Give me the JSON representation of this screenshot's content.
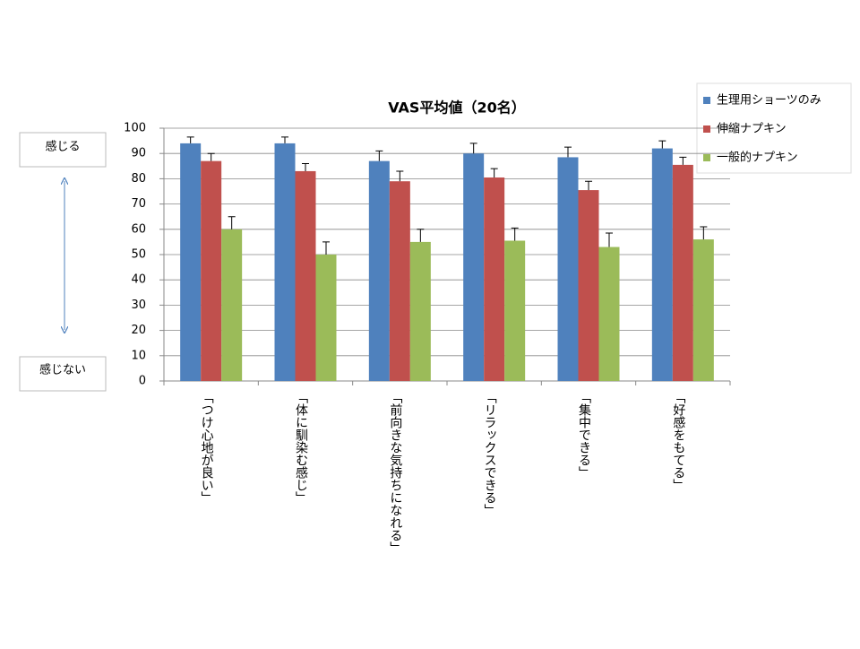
{
  "chart_data": {
    "type": "bar",
    "title": "VAS平均値（20名）",
    "categories": [
      "「つけ心地が良い」",
      "「体に馴染む感じ」",
      "「前向きな気持ちになれる」",
      "「リラックスできる」",
      "「集中できる」",
      "「好感をもてる」"
    ],
    "series": [
      {
        "name": "生理用ショーツのみ",
        "color": "#4f81bd",
        "values": [
          94,
          94,
          87,
          90,
          88.5,
          92
        ],
        "errors": [
          2.5,
          2.5,
          4,
          4,
          4,
          3
        ]
      },
      {
        "name": "伸縮ナプキン",
        "color": "#c0504d",
        "values": [
          87,
          83,
          79,
          80.5,
          75.5,
          85.5
        ],
        "errors": [
          3,
          3,
          4,
          3.5,
          3.5,
          3
        ]
      },
      {
        "name": "一般的ナプキン",
        "color": "#9bbb59",
        "values": [
          60,
          50,
          55,
          55.5,
          53,
          56
        ],
        "errors": [
          5,
          5,
          5,
          5,
          5.5,
          5
        ]
      }
    ],
    "ylim": [
      0,
      100
    ],
    "yticks": [
      0,
      10,
      20,
      30,
      40,
      50,
      60,
      70,
      80,
      90,
      100
    ],
    "grid": true,
    "legend": "top-right",
    "annotations": [
      "感じる",
      "感じない"
    ]
  }
}
